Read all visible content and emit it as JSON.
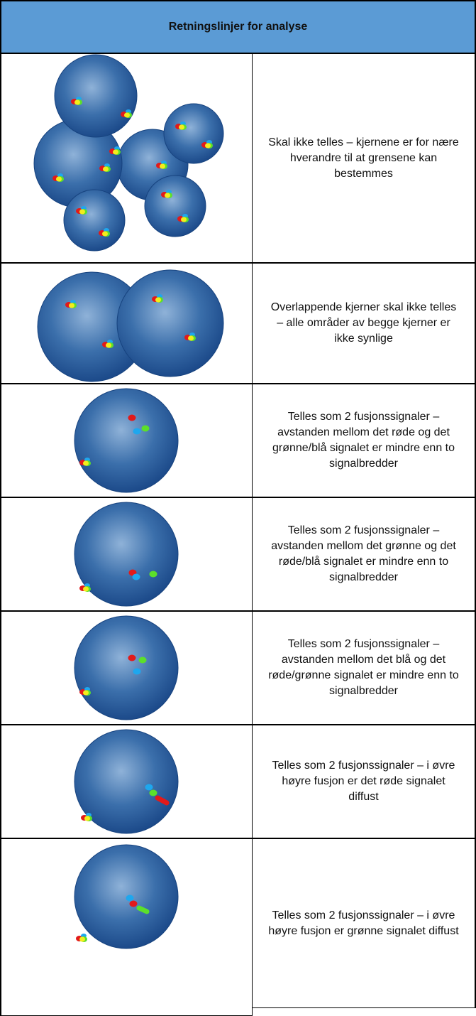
{
  "header": {
    "title": "Retningslinjer for analyse"
  },
  "rows": [
    {
      "text": "Skal ikke telles – kjernene er for nære hverandre til at grensene kan bestemmes"
    },
    {
      "text": "Overlappende kjerner skal ikke telles – alle områder av begge kjerner er ikke synlige"
    },
    {
      "text": "Telles som 2 fusjonssignaler – avstanden mellom det røde og det grønne/blå signalet er mindre enn to signalbredder"
    },
    {
      "text": "Telles som 2 fusjonssignaler – avstanden mellom det grønne og det røde/blå signalet er mindre enn to signalbredder"
    },
    {
      "text": "Telles som 2 fusjonssignaler – avstanden mellom det blå og det røde/grønne signalet er mindre enn to signalbredder"
    },
    {
      "text": "Telles som 2 fusjonssignaler – i øvre høyre fusjon er det røde signalet diffust"
    },
    {
      "text": "Telles som 2 fusjonssignaler – i øvre høyre fusjon er grønne signalet diffust"
    }
  ]
}
